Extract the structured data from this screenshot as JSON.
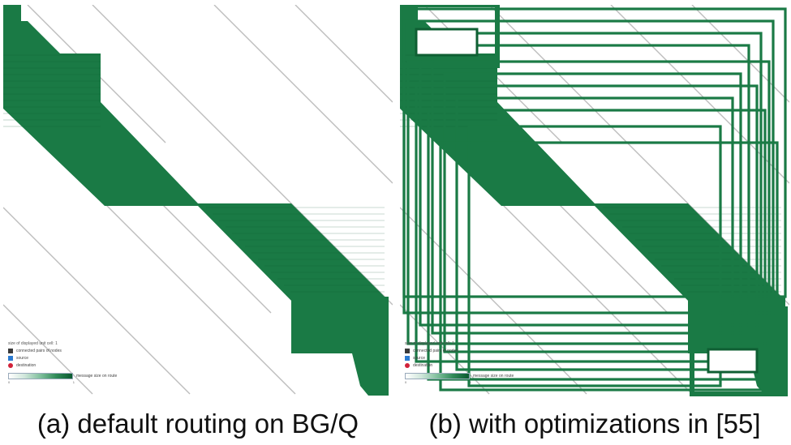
{
  "figure": {
    "panels": [
      {
        "id": "a",
        "caption": "(a) default routing on BG/Q",
        "legend": {
          "title": "size of displayed unit cell: 1",
          "items": [
            {
              "label": "connected pairs of nodes",
              "icon": "dark-square-icon",
              "color": "#3a3a3a"
            },
            {
              "label": "source",
              "icon": "blue-square-icon",
              "color": "#2b7bd1"
            },
            {
              "label": "destination",
              "icon": "red-dot-icon",
              "color": "#d1223a"
            }
          ],
          "scale_label": "message size on route",
          "scale_min": "0",
          "scale_max": "1"
        }
      },
      {
        "id": "b",
        "caption": "(b) with optimizations in [55]",
        "legend": {
          "title": "size of displayed unit cell: 1",
          "items": [
            {
              "label": "connected pairs of nodes",
              "icon": "dark-square-icon",
              "color": "#3a3a3a"
            },
            {
              "label": "source",
              "icon": "blue-square-icon",
              "color": "#2b7bd1"
            },
            {
              "label": "destination",
              "icon": "red-dot-icon",
              "color": "#d1223a"
            }
          ],
          "scale_label": "message size on route",
          "scale_min": "0",
          "scale_max": "1"
        }
      }
    ],
    "colors": {
      "route_green": "#1a7a45",
      "route_dark": "#0f5f33",
      "diagonal_gray": "#bdbdbd",
      "background": "#ffffff"
    }
  }
}
